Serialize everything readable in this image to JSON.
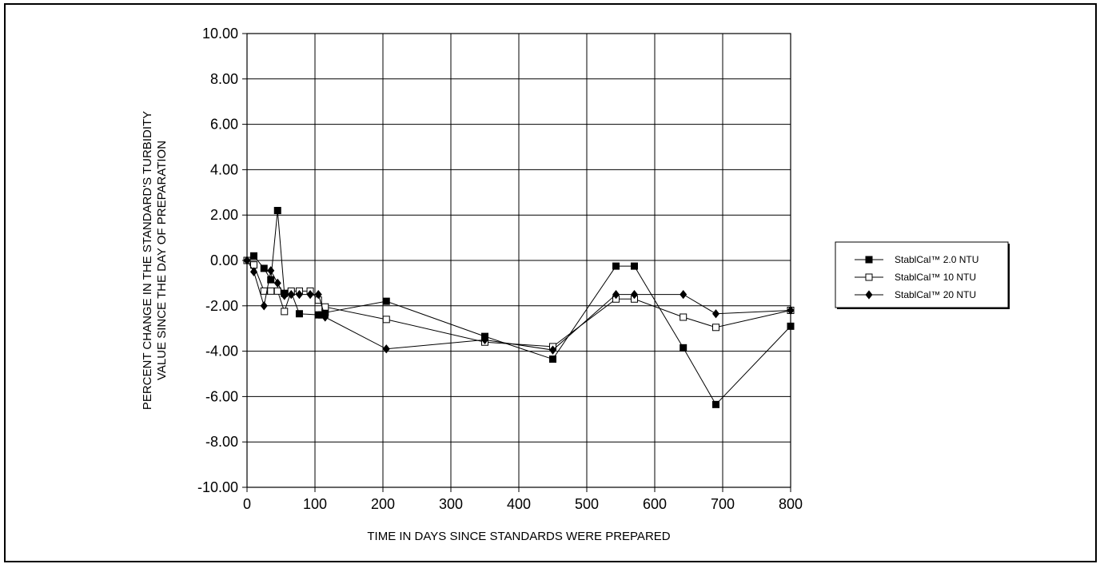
{
  "chart_data": {
    "type": "line",
    "xlabel": "TIME IN DAYS SINCE STANDARDS WERE PREPARED",
    "ylabel": "PERCENT CHANGE IN THE STANDARD'S TURBIDITY VALUE SINCE THE DAY OF PREPARATION",
    "ylabel_lines": [
      "PERCENT CHANGE IN THE STANDARD'S TURBIDITY",
      "VALUE SINCE THE DAY OF PREPARATION"
    ],
    "xlim": [
      0,
      800
    ],
    "ylim": [
      -10,
      10
    ],
    "x_ticks": [
      0,
      100,
      200,
      300,
      400,
      500,
      600,
      700,
      800
    ],
    "x_tick_labels": [
      "0",
      "100",
      "200",
      "300",
      "400",
      "500",
      "600",
      "700",
      "800"
    ],
    "y_ticks": [
      10,
      8,
      6,
      4,
      2,
      0,
      -2,
      -4,
      -6,
      -8,
      -10
    ],
    "y_tick_labels": [
      "10.00",
      "8.00",
      "6.00",
      "4.00",
      "2.00",
      "0.00",
      "-2.00",
      "-4.00",
      "-6.00",
      "-8.00",
      "-10.00"
    ],
    "grid": true,
    "legend_position": "right",
    "series": [
      {
        "name": "StablCal™ 2.0 NTU",
        "marker": "filled-square",
        "color": "#000000",
        "x": [
          0,
          10,
          25,
          35,
          45,
          55,
          65,
          77,
          105,
          110,
          115,
          205,
          350,
          450,
          543,
          570,
          642,
          690,
          800
        ],
        "y": [
          0.0,
          0.2,
          -0.35,
          -0.85,
          2.2,
          -1.45,
          -1.4,
          -2.35,
          -2.4,
          -2.4,
          -2.3,
          -1.8,
          -3.35,
          -4.35,
          -0.25,
          -0.25,
          -3.85,
          -6.35,
          -2.9
        ]
      },
      {
        "name": "StablCal™ 10 NTU",
        "marker": "open-square",
        "color": "#000000",
        "x": [
          0,
          10,
          25,
          35,
          45,
          55,
          65,
          77,
          93,
          105,
          115,
          205,
          350,
          450,
          543,
          570,
          642,
          690,
          800
        ],
        "y": [
          0.0,
          -0.2,
          -1.35,
          -1.35,
          -1.35,
          -2.25,
          -1.35,
          -1.35,
          -1.35,
          -1.75,
          -2.05,
          -2.6,
          -3.6,
          -3.8,
          -1.7,
          -1.7,
          -2.5,
          -2.95,
          -2.2
        ]
      },
      {
        "name": "StablCal™ 20 NTU",
        "marker": "filled-diamond",
        "color": "#000000",
        "x": [
          0,
          10,
          25,
          35,
          45,
          55,
          65,
          77,
          93,
          105,
          115,
          205,
          350,
          450,
          543,
          570,
          642,
          690,
          800
        ],
        "y": [
          0.0,
          -0.5,
          -2.0,
          -0.45,
          -1.0,
          -1.55,
          -1.5,
          -1.5,
          -1.5,
          -1.5,
          -2.5,
          -3.9,
          -3.5,
          -3.95,
          -1.5,
          -1.5,
          -1.5,
          -2.35,
          -2.2
        ]
      }
    ]
  }
}
